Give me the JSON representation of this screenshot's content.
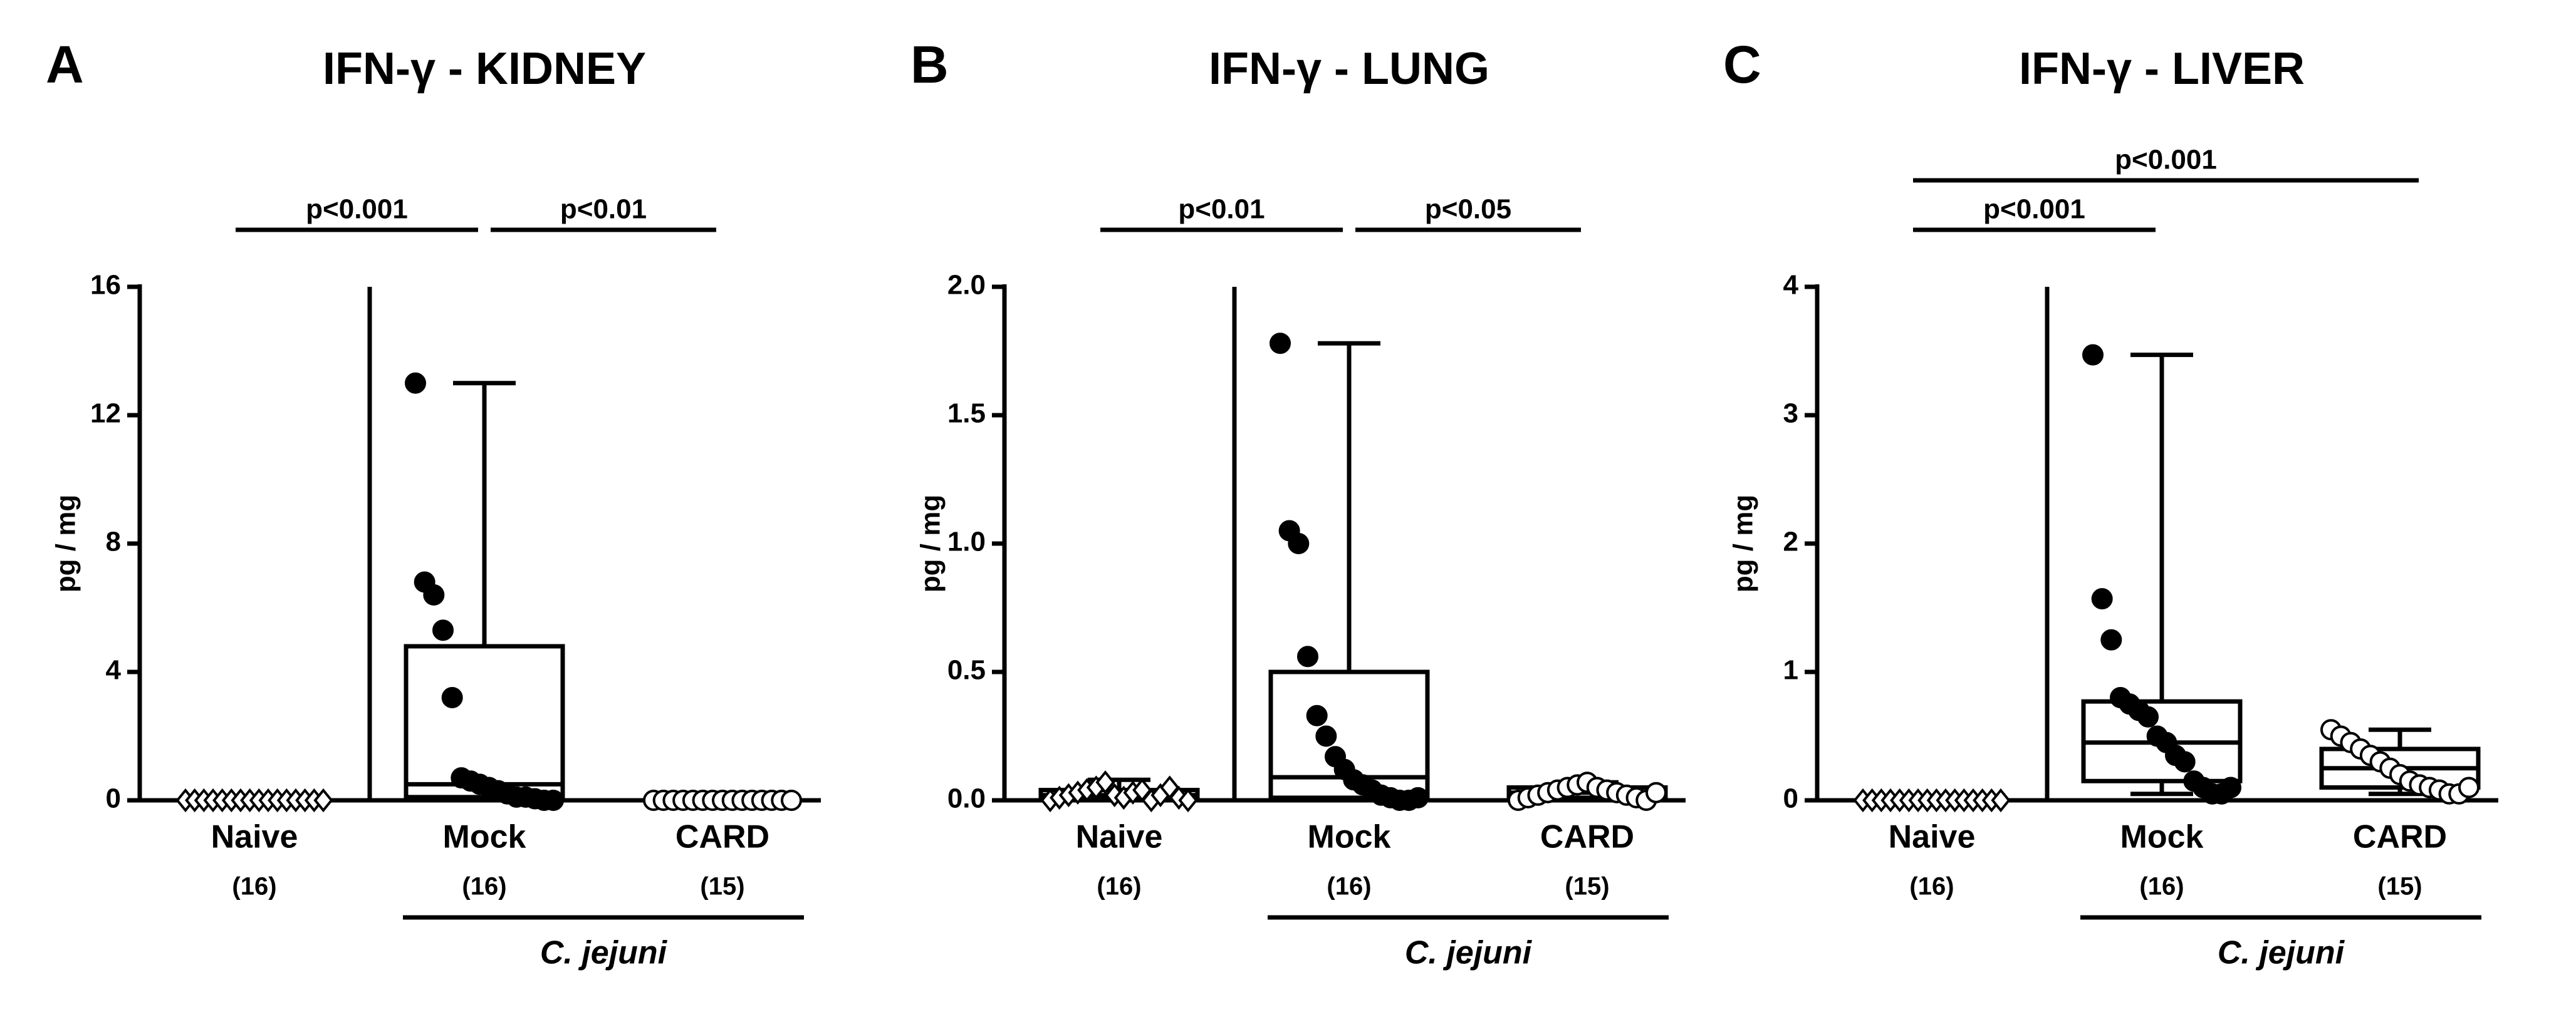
{
  "chart_data": [
    {
      "type": "box",
      "panel_label": "A",
      "title": "IFN-γ - KIDNEY",
      "ylabel": "pg / mg",
      "categories": [
        "Naive",
        "Mock",
        "CARD"
      ],
      "group_sizes": [
        "(16)",
        "(16)",
        "(15)"
      ],
      "group_label": "C. jejuni",
      "ylim": [
        0,
        16
      ],
      "yticks": [
        0,
        4,
        8,
        12,
        16
      ],
      "groups": [
        {
          "marker": "diamond",
          "filled": false,
          "box": {
            "min": 0,
            "q1": 0,
            "median": 0,
            "q3": 0,
            "max": 0
          },
          "points": [
            0,
            0,
            0,
            0,
            0,
            0,
            0,
            0,
            0,
            0,
            0,
            0,
            0,
            0,
            0,
            0
          ]
        },
        {
          "marker": "circle",
          "filled": true,
          "box": {
            "min": 0,
            "q1": 0.1,
            "median": 0.5,
            "q3": 4.8,
            "max": 13
          },
          "points": [
            13,
            6.8,
            6.4,
            5.3,
            3.2,
            0.7,
            0.6,
            0.5,
            0.4,
            0.3,
            0.2,
            0.1,
            0.1,
            0.05,
            0,
            0
          ]
        },
        {
          "marker": "circle",
          "filled": false,
          "box": {
            "min": 0,
            "q1": 0,
            "median": 0,
            "q3": 0,
            "max": 0
          },
          "points": [
            0,
            0,
            0,
            0,
            0,
            0,
            0,
            0,
            0,
            0,
            0,
            0,
            0,
            0,
            0
          ]
        }
      ],
      "comparisons": [
        {
          "pair": [
            0,
            1
          ],
          "label": "p<0.001"
        },
        {
          "pair": [
            1,
            2
          ],
          "label": "p<0.01"
        }
      ]
    },
    {
      "type": "box",
      "panel_label": "B",
      "title": "IFN-γ - LUNG",
      "ylabel": "pg / mg",
      "categories": [
        "Naive",
        "Mock",
        "CARD"
      ],
      "group_sizes": [
        "(16)",
        "(16)",
        "(15)"
      ],
      "group_label": "C. jejuni",
      "ylim": [
        0,
        2
      ],
      "yticks": [
        {
          "value": 0,
          "label": "0.0"
        },
        0.5,
        {
          "value": 1,
          "label": "1.0"
        },
        1.5,
        {
          "value": 2,
          "label": "2.0"
        }
      ],
      "groups": [
        {
          "marker": "diamond",
          "filled": false,
          "box": {
            "min": 0,
            "q1": 0.005,
            "median": 0.02,
            "q3": 0.04,
            "max": 0.08
          },
          "points": [
            0,
            0.01,
            0.02,
            0.03,
            0.04,
            0.05,
            0.07,
            0.02,
            0.01,
            0.03,
            0.04,
            0,
            0.02,
            0.05,
            0.01,
            0
          ]
        },
        {
          "marker": "circle",
          "filled": true,
          "box": {
            "min": 0,
            "q1": 0.01,
            "median": 0.09,
            "q3": 0.5,
            "max": 1.78
          },
          "points": [
            1.78,
            1.05,
            1,
            0.56,
            0.33,
            0.25,
            0.17,
            0.12,
            0.08,
            0.06,
            0.04,
            0.02,
            0.01,
            0,
            0,
            0.01
          ]
        },
        {
          "marker": "circle",
          "filled": false,
          "box": {
            "min": 0,
            "q1": 0.01,
            "median": 0.03,
            "q3": 0.05,
            "max": 0.07
          },
          "points": [
            0,
            0.01,
            0.02,
            0.03,
            0.04,
            0.05,
            0.06,
            0.07,
            0.05,
            0.04,
            0.03,
            0.02,
            0.01,
            0,
            0.03
          ]
        }
      ],
      "comparisons": [
        {
          "pair": [
            0,
            1
          ],
          "label": "p<0.01"
        },
        {
          "pair": [
            1,
            2
          ],
          "label": "p<0.05"
        }
      ]
    },
    {
      "type": "box",
      "panel_label": "C",
      "title": "IFN-γ - LIVER",
      "ylabel": "pg / mg",
      "categories": [
        "Naive",
        "Mock",
        "CARD"
      ],
      "group_sizes": [
        "(16)",
        "(16)",
        "(15)"
      ],
      "group_label": "C. jejuni",
      "ylim": [
        0,
        4
      ],
      "yticks": [
        0,
        1,
        2,
        3,
        4
      ],
      "groups": [
        {
          "marker": "diamond",
          "filled": false,
          "box": {
            "min": 0,
            "q1": 0,
            "median": 0,
            "q3": 0,
            "max": 0
          },
          "points": [
            0,
            0,
            0,
            0,
            0,
            0,
            0,
            0,
            0,
            0,
            0,
            0,
            0,
            0,
            0,
            0
          ]
        },
        {
          "marker": "circle",
          "filled": true,
          "box": {
            "min": 0.05,
            "q1": 0.15,
            "median": 0.45,
            "q3": 0.77,
            "max": 3.47
          },
          "points": [
            3.47,
            1.57,
            1.25,
            0.8,
            0.75,
            0.7,
            0.65,
            0.5,
            0.45,
            0.35,
            0.3,
            0.15,
            0.1,
            0.05,
            0.05,
            0.1
          ]
        },
        {
          "marker": "circle",
          "filled": false,
          "box": {
            "min": 0.05,
            "q1": 0.1,
            "median": 0.25,
            "q3": 0.4,
            "max": 0.55
          },
          "points": [
            0.55,
            0.5,
            0.45,
            0.4,
            0.35,
            0.3,
            0.25,
            0.2,
            0.15,
            0.12,
            0.1,
            0.08,
            0.05,
            0.05,
            0.1
          ]
        }
      ],
      "comparisons": [
        {
          "pair": [
            0,
            1
          ],
          "label": "p<0.001"
        },
        {
          "pair": [
            0,
            2
          ],
          "label": "p<0.001"
        }
      ]
    }
  ]
}
